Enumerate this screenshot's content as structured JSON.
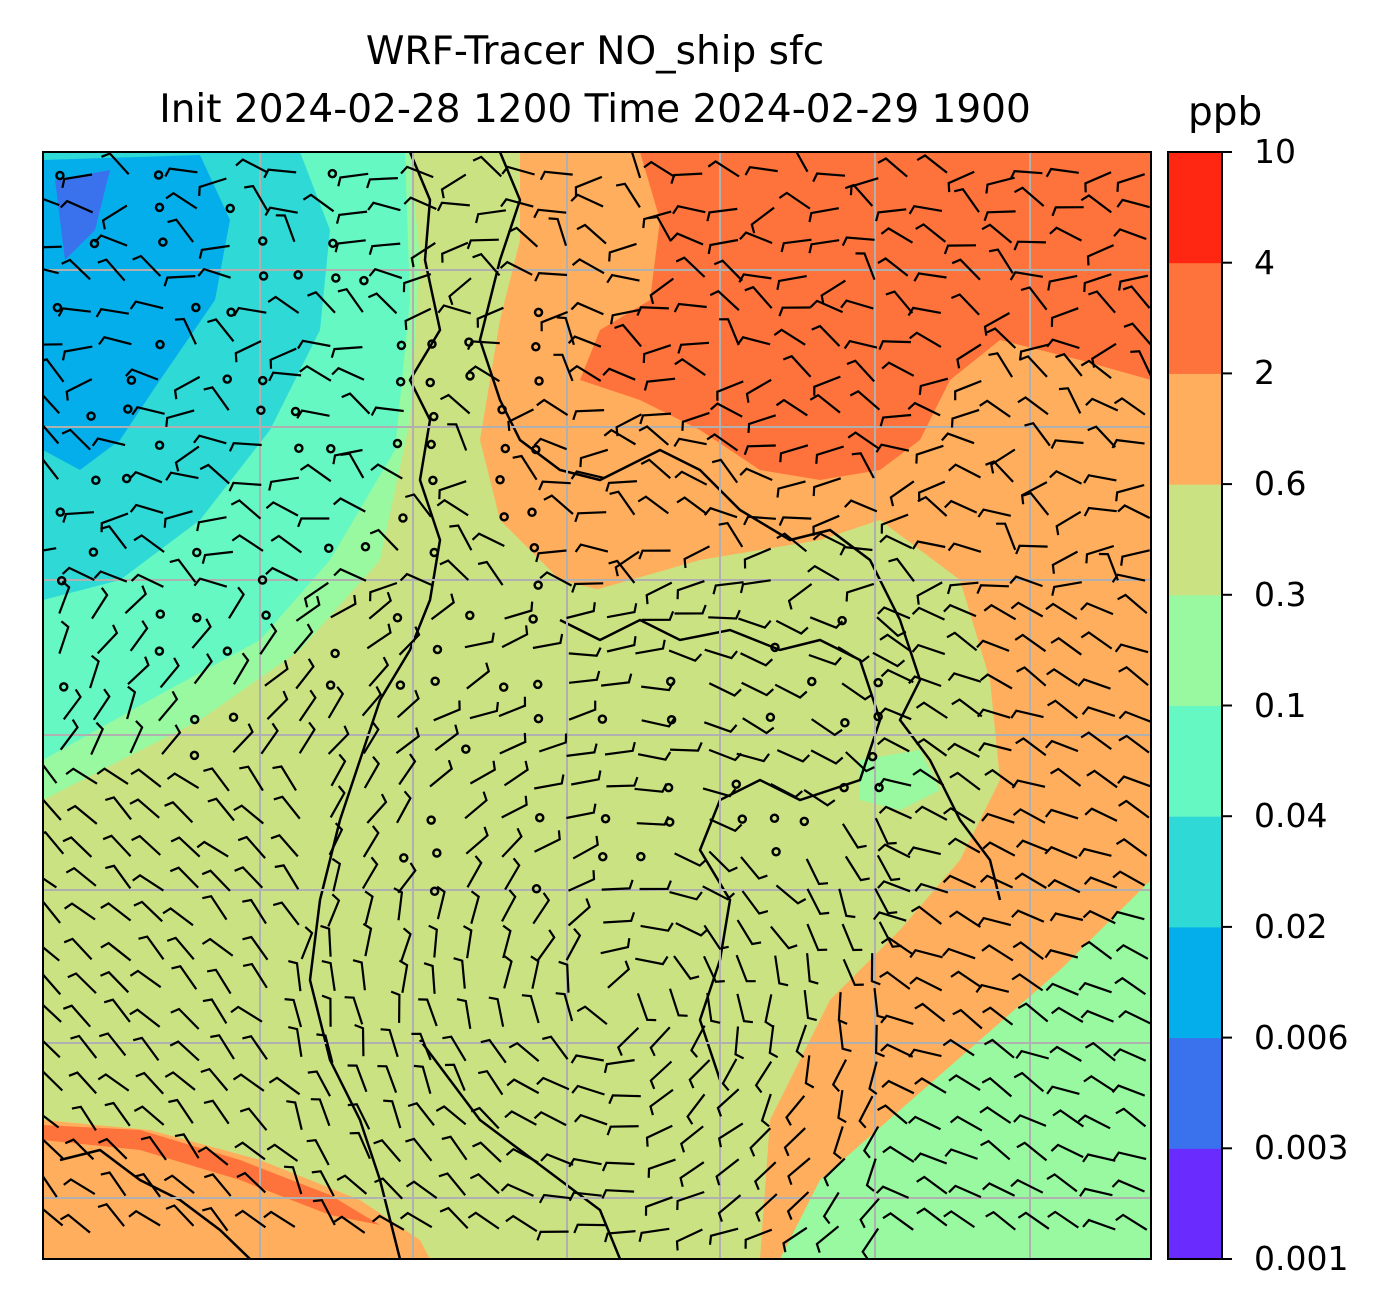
{
  "title": {
    "line1": "WRF-Tracer NO_ship sfc",
    "line2": "Init 2024-02-28 1200 Time 2024-02-29 1900"
  },
  "colorbar": {
    "unit": "ppb",
    "levels": [
      "0.001",
      "0.003",
      "0.006",
      "0.02",
      "0.04",
      "0.1",
      "0.3",
      "0.6",
      "2",
      "4",
      "10"
    ],
    "colors": [
      "#6a2bff",
      "#3a72ee",
      "#04aeea",
      "#2ed9d6",
      "#66f8c3",
      "#98f9a0",
      "#cbe283",
      "#feae5c",
      "#fd733b",
      "#ff2712"
    ]
  },
  "map": {
    "field_levels_by_region": {
      "northwest": "0.04",
      "north_center": "0.3",
      "northeast": "2",
      "center": "0.3",
      "east": "0.6",
      "southeast": "0.1",
      "southwest": "0.6"
    }
  }
}
